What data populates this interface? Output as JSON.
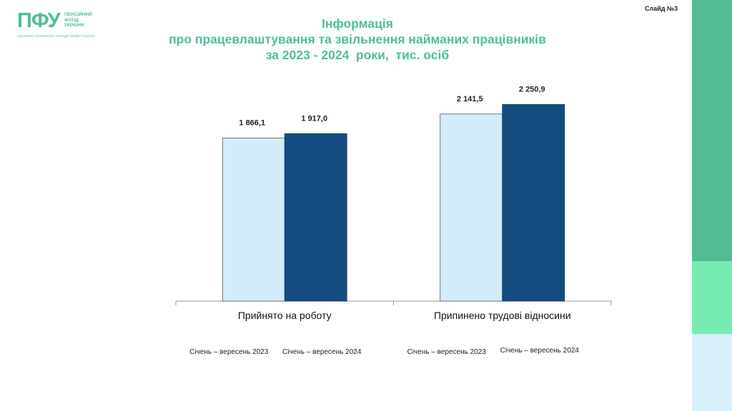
{
  "logo": {
    "mark": "ПФУ",
    "name_lines": [
      "ПЕНСІЙНИЙ",
      "ФОНД",
      "УКРАЇНИ"
    ],
    "tagline": "ЄДНАЄМО ПОКОЛІННЯ ЗАРАДИ МАЙБУТНЬОГО"
  },
  "slide_number": "Слайд №3",
  "title_lines": [
    "Інформація",
    "про працевлаштування та звільнення найманих працівників",
    "за 2023 - 2024  роки,  тис. осіб"
  ],
  "colors": {
    "accent_green": "#4fbf95",
    "series_2023": "#d3ecf9",
    "series_2024": "#144c82",
    "bar_right_top": "#52bd92",
    "bar_right_mid": "#76ecb0",
    "bar_right_bottom": "#d6effb"
  },
  "chart_data": {
    "type": "bar",
    "categories": [
      "Прийнято на роботу",
      "Припинено трудові відносини"
    ],
    "series": [
      {
        "name": "Січень – вересень 2023",
        "values": [
          1866.1,
          2141.5
        ]
      },
      {
        "name": "Січень – вересень 2024",
        "values": [
          1917.0,
          2250.9
        ]
      }
    ],
    "data_labels": [
      [
        "1 866,1",
        "2 141,5"
      ],
      [
        "1 917,0",
        "2 250,9"
      ]
    ],
    "legend_per_category": [
      [
        "Січень – вересень 2023",
        "Січень – вересень 2024"
      ],
      [
        "Січень – вересень 2023",
        "Січень – вересень 2024"
      ]
    ],
    "ylim": [
      0,
      2450
    ],
    "grid": false,
    "legend_placement": "bottom"
  }
}
